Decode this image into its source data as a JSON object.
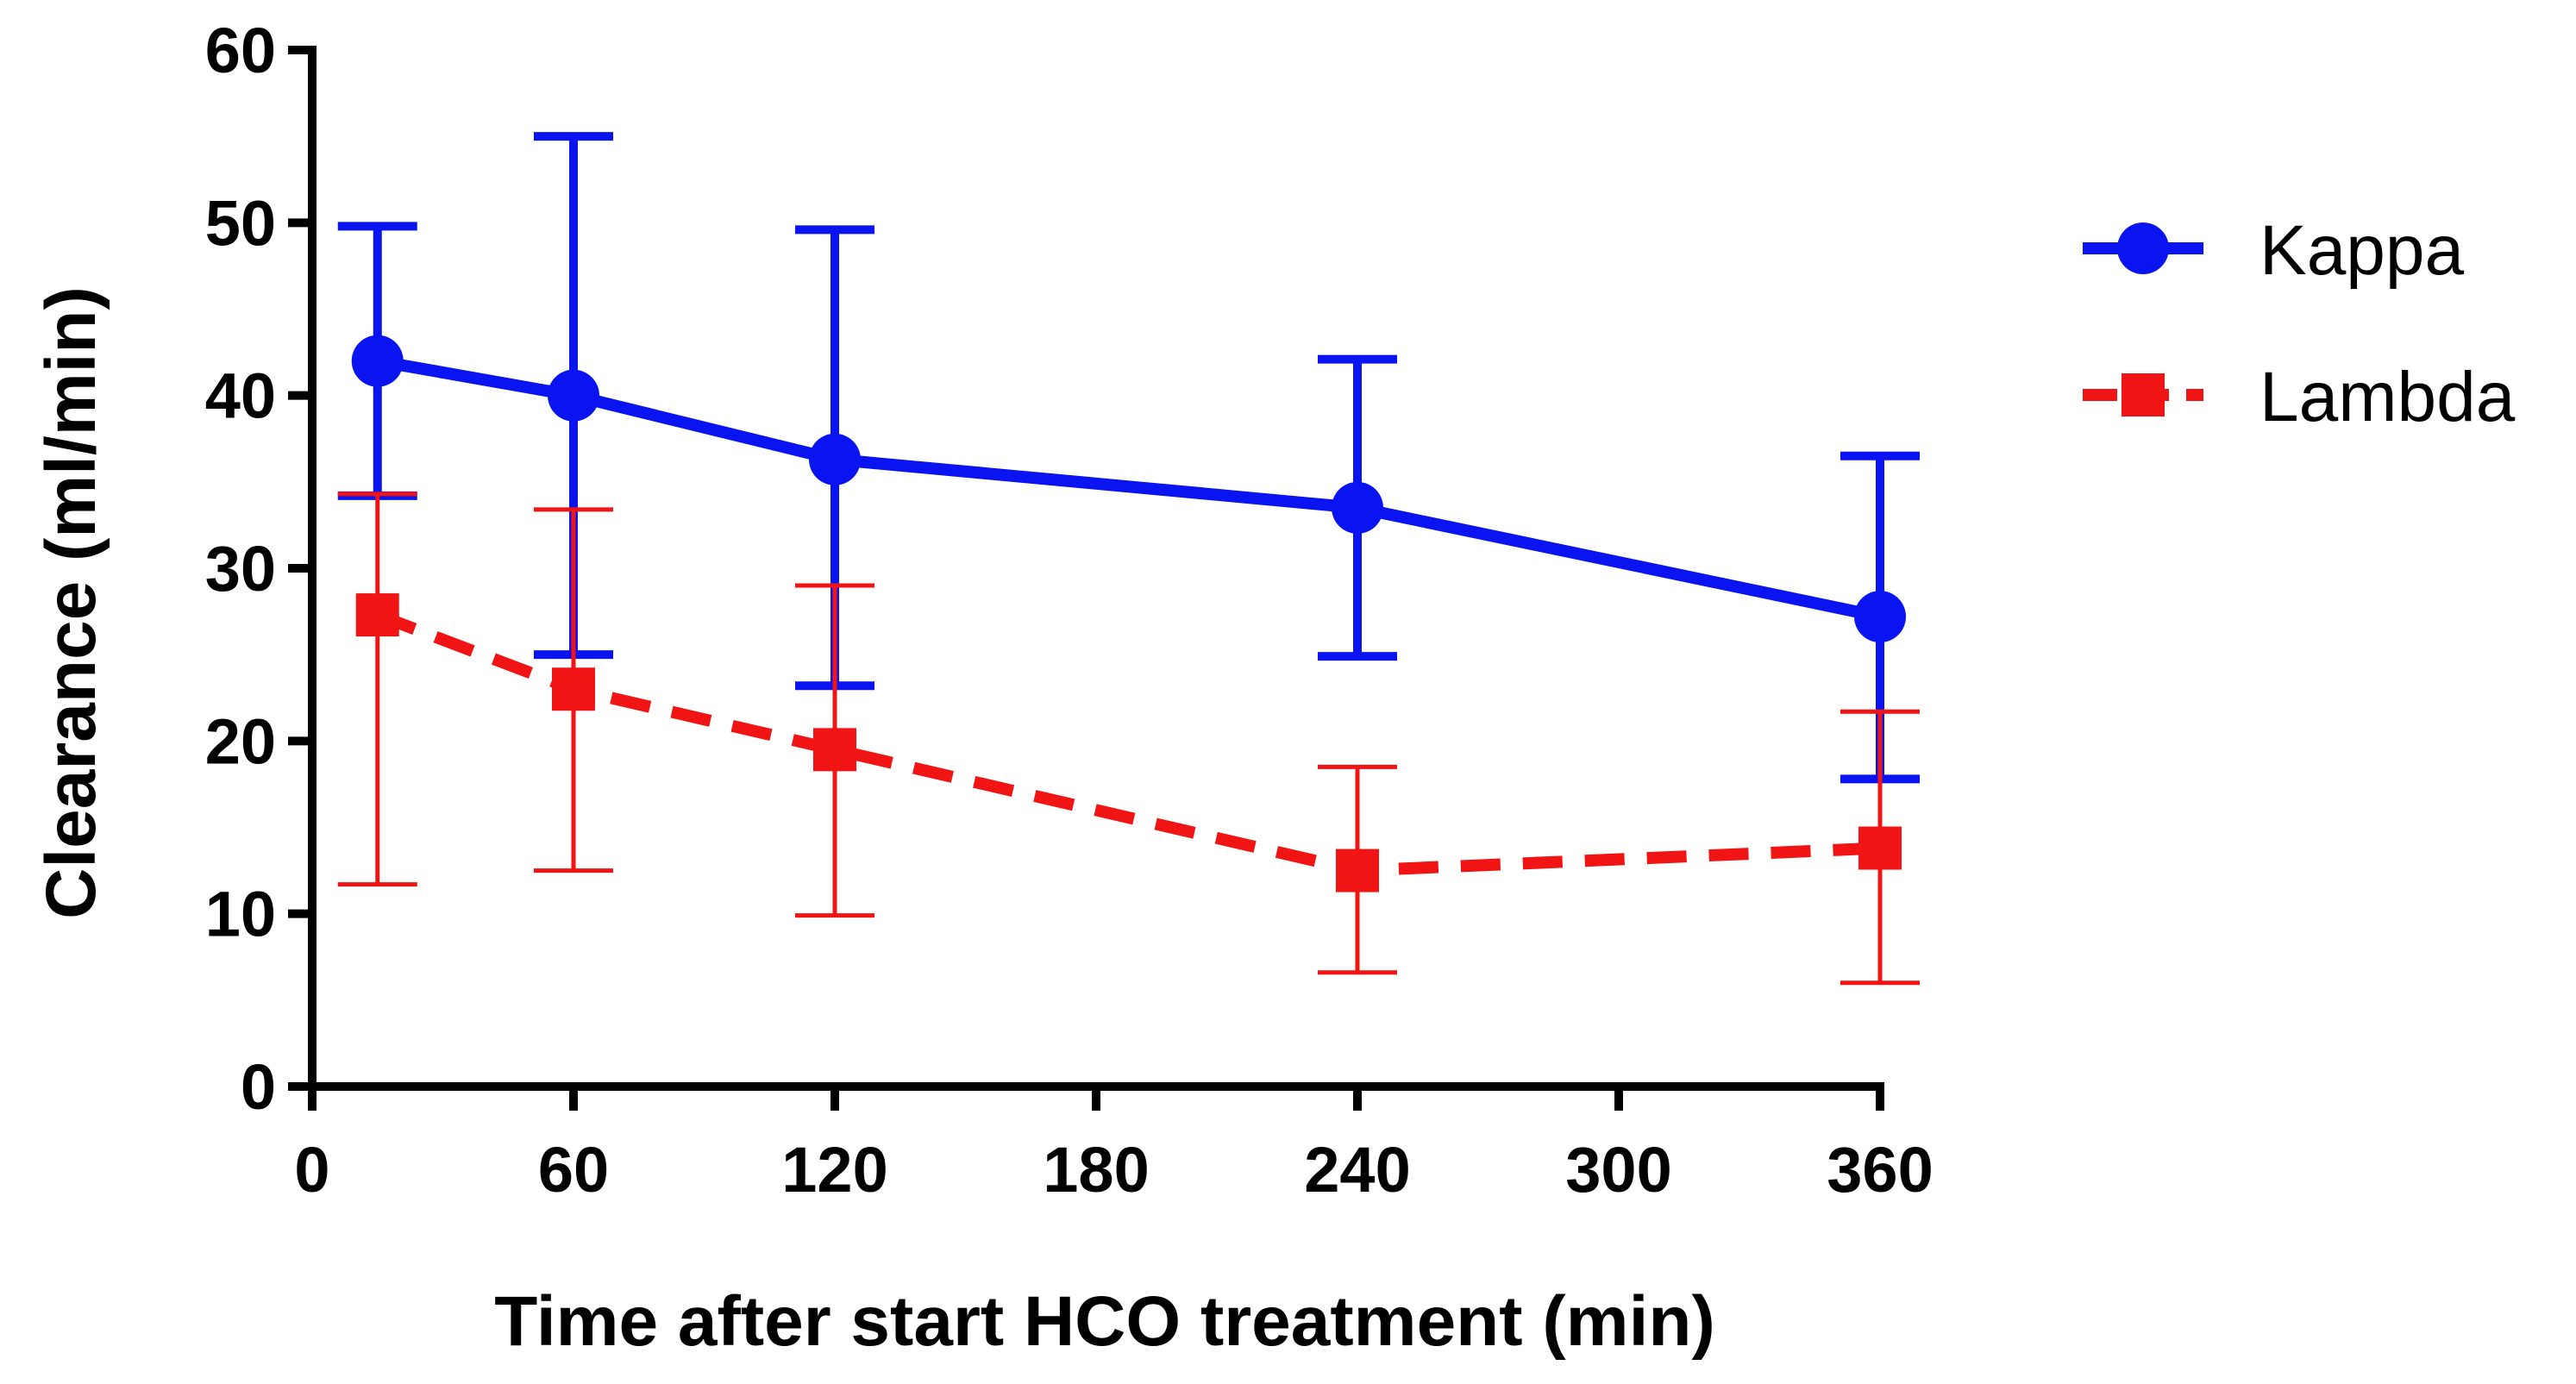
{
  "chart_data": {
    "type": "line",
    "title": "",
    "xlabel": "Time after start HCO treatment (min)",
    "ylabel": "Clearance (ml/min)",
    "xlim": [
      0,
      360
    ],
    "ylim": [
      0,
      60
    ],
    "xticks": [
      0,
      60,
      120,
      180,
      240,
      300,
      360
    ],
    "yticks": [
      0,
      10,
      20,
      30,
      40,
      50,
      60
    ],
    "grid": false,
    "legend_position": "right",
    "series": [
      {
        "name": "Kappa",
        "color": "#0a14f0",
        "marker": "circle",
        "line_style": "solid",
        "x": [
          15,
          60,
          120,
          240,
          360
        ],
        "y": [
          42.0,
          40.0,
          36.3,
          33.5,
          27.2
        ],
        "error_low": [
          34.2,
          25.0,
          23.2,
          24.9,
          17.8
        ],
        "error_high": [
          49.8,
          55.0,
          49.6,
          42.1,
          36.5
        ]
      },
      {
        "name": "Lambda",
        "color": "#f01414",
        "marker": "square",
        "line_style": "dashed",
        "x": [
          15,
          60,
          120,
          240,
          360
        ],
        "y": [
          27.3,
          23.0,
          19.5,
          12.5,
          13.8
        ],
        "error_low": [
          11.7,
          12.5,
          9.9,
          6.6,
          6.0
        ],
        "error_high": [
          34.3,
          33.4,
          29.0,
          18.5,
          21.7
        ]
      }
    ]
  }
}
